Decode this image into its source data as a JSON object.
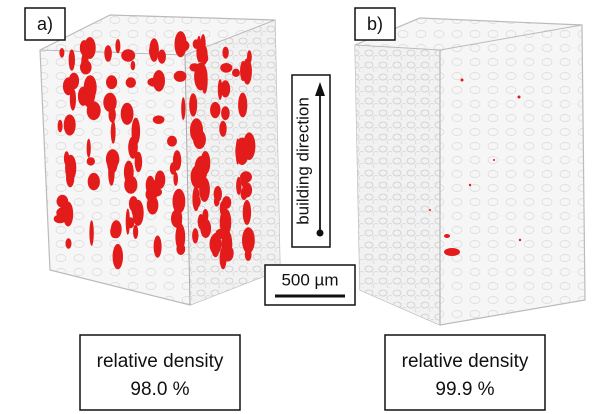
{
  "panels": [
    {
      "label": "a)",
      "density_label": "relative density",
      "density": "98.0 %"
    },
    {
      "label": "b)",
      "density_label": "relative density",
      "density": "99.9 %"
    }
  ],
  "direction": "building direction",
  "scale_bar": "500 µm"
}
